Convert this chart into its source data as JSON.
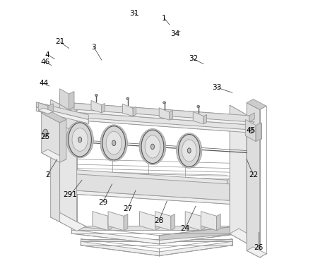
{
  "bg_color": "#ffffff",
  "lc": "#999999",
  "dc": "#555555",
  "fc_light": "#f0f0f0",
  "fc_mid": "#e0e0e0",
  "fc_dark": "#cccccc",
  "label_fs": 7.5,
  "labels_data": {
    "1": [
      0.53,
      0.93,
      0.55,
      0.905
    ],
    "2": [
      0.083,
      0.33,
      0.12,
      0.39
    ],
    "3": [
      0.26,
      0.82,
      0.29,
      0.77
    ],
    "4": [
      0.082,
      0.79,
      0.11,
      0.775
    ],
    "21": [
      0.13,
      0.84,
      0.165,
      0.815
    ],
    "22": [
      0.87,
      0.33,
      0.845,
      0.39
    ],
    "24": [
      0.61,
      0.125,
      0.65,
      0.21
    ],
    "25": [
      0.075,
      0.475,
      0.09,
      0.49
    ],
    "26": [
      0.89,
      0.05,
      0.89,
      0.11
    ],
    "27": [
      0.39,
      0.2,
      0.42,
      0.27
    ],
    "28": [
      0.51,
      0.155,
      0.54,
      0.23
    ],
    "29": [
      0.295,
      0.225,
      0.33,
      0.295
    ],
    "291": [
      0.17,
      0.253,
      0.215,
      0.31
    ],
    "31": [
      0.415,
      0.95,
      0.43,
      0.94
    ],
    "32": [
      0.64,
      0.775,
      0.68,
      0.755
    ],
    "33": [
      0.73,
      0.665,
      0.79,
      0.645
    ],
    "34": [
      0.57,
      0.87,
      0.59,
      0.88
    ],
    "44": [
      0.068,
      0.68,
      0.09,
      0.67
    ],
    "45": [
      0.862,
      0.5,
      0.87,
      0.51
    ],
    "46": [
      0.075,
      0.762,
      0.098,
      0.75
    ]
  }
}
